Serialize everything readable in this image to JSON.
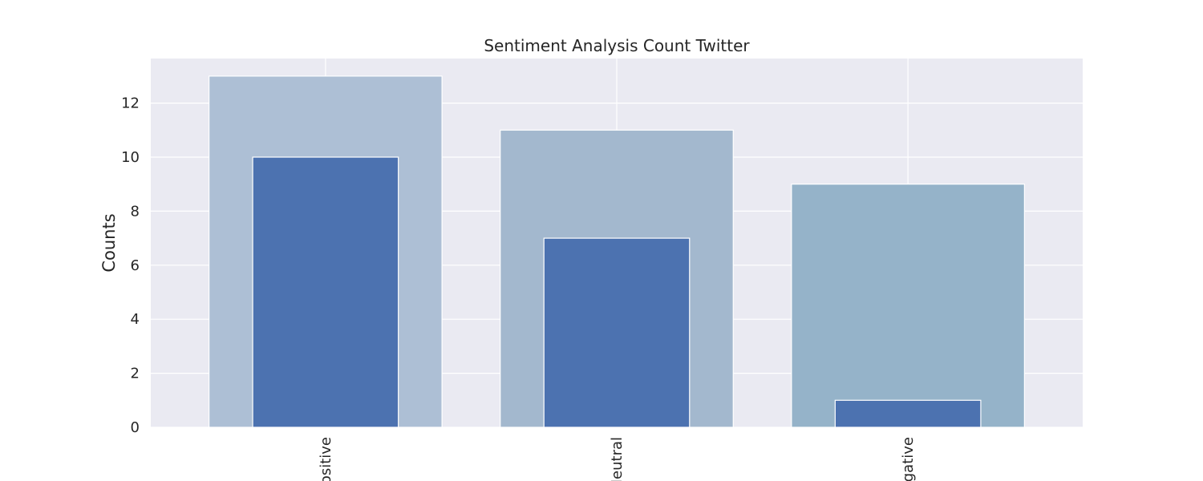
{
  "chart_data": {
    "type": "bar",
    "title": "Sentiment Analysis Count Twitter",
    "xlabel": "",
    "ylabel": "Counts",
    "categories": [
      "Positive",
      "Neutral",
      "Negative"
    ],
    "series": [
      {
        "values": [
          13,
          11,
          9
        ]
      },
      {
        "values": [
          10,
          7,
          1
        ]
      }
    ],
    "colors": {
      "background_bars": [
        "#adbfd5",
        "#a3b8ce",
        "#95b3c9"
      ],
      "foreground_bars": "#4c72b0",
      "plot_background": "#eaeaf2",
      "grid": "#ffffff"
    },
    "yticks": [
      0,
      2,
      4,
      6,
      8,
      10,
      12
    ],
    "ylim": [
      0,
      13.65
    ],
    "grid": true,
    "xtick_rotation": "vertical"
  }
}
